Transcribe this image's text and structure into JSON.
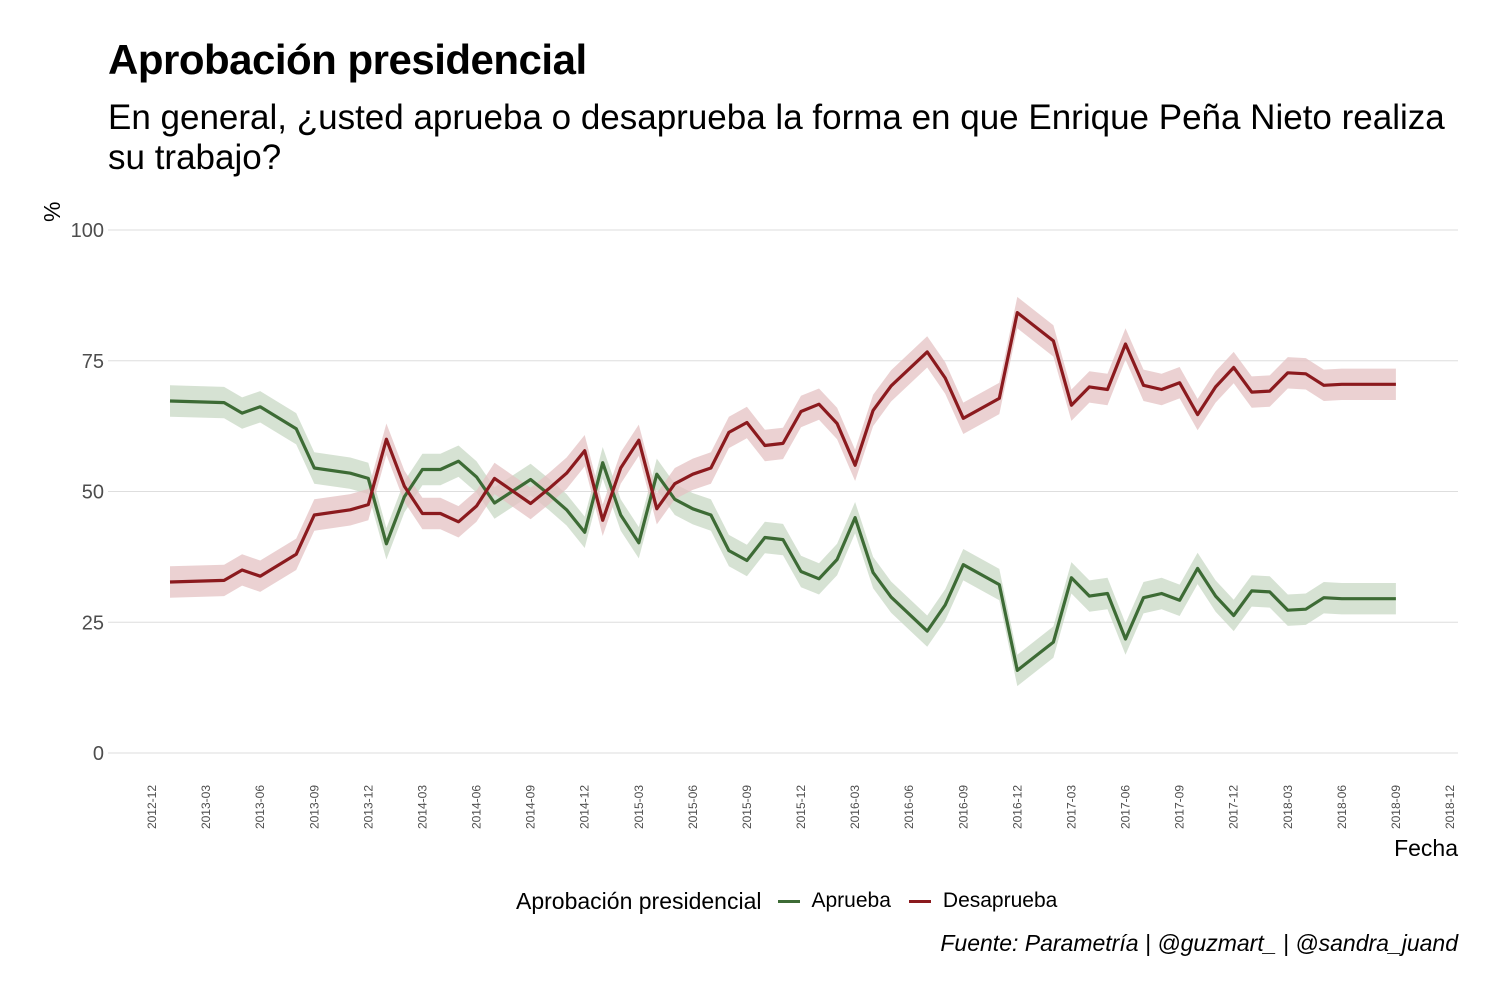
{
  "title": "Aprobación presidencial",
  "subtitle": "En general, ¿usted aprueba o desaprueba la forma en que Enrique Peña Nieto realiza su trabajo?",
  "caption": "Fuente: Parametría | @guzmart_ | @sandra_juand",
  "legend": {
    "title": "Aprobación presidencial",
    "items": [
      "Aprueba",
      "Desaprueba"
    ]
  },
  "colors": {
    "aprueba": "#3d6b35",
    "aprueba_band": "#c8d8c4",
    "desaprueba": "#8b1a1e",
    "desaprueba_band": "#e4c2c3",
    "grid": "#dedede"
  },
  "chart_data": {
    "type": "line",
    "xlabel": "Fecha",
    "ylabel": "%",
    "ylim": [
      0,
      100
    ],
    "yticks": [
      0,
      25,
      50,
      75,
      100
    ],
    "xlim": [
      "2012-12",
      "2018-12"
    ],
    "xticks": [
      "2012-12",
      "2013-03",
      "2013-06",
      "2013-09",
      "2013-12",
      "2014-03",
      "2014-06",
      "2014-09",
      "2014-12",
      "2015-03",
      "2015-06",
      "2015-09",
      "2015-12",
      "2016-03",
      "2016-06",
      "2016-09",
      "2016-12",
      "2017-03",
      "2017-06",
      "2017-09",
      "2017-12",
      "2018-03",
      "2018-06",
      "2018-09",
      "2018-12"
    ],
    "grid": true,
    "legend_position": "bottom",
    "band_halfwidth": 3,
    "x": [
      "2013-01",
      "2013-04",
      "2013-05",
      "2013-06",
      "2013-08",
      "2013-09",
      "2013-11",
      "2013-12",
      "2014-01",
      "2014-02",
      "2014-03",
      "2014-04",
      "2014-05",
      "2014-06",
      "2014-07",
      "2014-09",
      "2014-10",
      "2014-11",
      "2014-12",
      "2015-01",
      "2015-02",
      "2015-03",
      "2015-04",
      "2015-05",
      "2015-06",
      "2015-07",
      "2015-08",
      "2015-09",
      "2015-10",
      "2015-11",
      "2015-12",
      "2016-01",
      "2016-02",
      "2016-03",
      "2016-04",
      "2016-05",
      "2016-07",
      "2016-08",
      "2016-09",
      "2016-11",
      "2016-12",
      "2017-02",
      "2017-03",
      "2017-04",
      "2017-05",
      "2017-06",
      "2017-07",
      "2017-08",
      "2017-09",
      "2017-10",
      "2017-11",
      "2017-12",
      "2018-01",
      "2018-02",
      "2018-03",
      "2018-04",
      "2018-05",
      "2018-06",
      "2018-07",
      "2018-08",
      "2018-09"
    ],
    "series": [
      {
        "name": "Aprueba",
        "values": [
          67.3,
          67.0,
          65.0,
          66.2,
          62.0,
          54.5,
          53.5,
          52.5,
          40.0,
          49.0,
          54.2,
          54.2,
          55.8,
          52.8,
          47.8,
          52.3,
          49.5,
          46.5,
          42.2,
          55.5,
          45.5,
          40.2,
          53.3,
          48.5,
          46.7,
          45.5,
          38.7,
          36.8,
          41.2,
          40.8,
          34.7,
          33.3,
          37.0,
          45.0,
          34.5,
          29.8,
          23.3,
          28.3,
          36.0,
          32.2,
          15.8,
          21.2,
          33.5,
          30.0,
          30.5,
          21.8,
          29.7,
          30.5,
          29.2,
          35.3,
          30.0,
          26.3,
          31.0,
          30.8,
          27.3,
          27.5,
          29.7,
          29.5,
          29.5,
          29.5,
          29.5
        ]
      },
      {
        "name": "Desaprueba",
        "values": [
          32.7,
          33.0,
          35.0,
          33.8,
          38.0,
          45.5,
          46.5,
          47.5,
          60.0,
          51.0,
          45.8,
          45.8,
          44.2,
          47.2,
          52.5,
          47.7,
          50.5,
          53.5,
          57.8,
          44.5,
          54.5,
          59.8,
          46.7,
          51.5,
          53.3,
          54.5,
          61.3,
          63.2,
          58.8,
          59.2,
          65.3,
          66.7,
          63.0,
          55.0,
          65.5,
          70.2,
          76.7,
          71.7,
          64.0,
          67.8,
          84.2,
          78.8,
          66.5,
          70.0,
          69.5,
          78.2,
          70.3,
          69.5,
          70.8,
          64.7,
          70.0,
          73.7,
          69.0,
          69.2,
          72.7,
          72.5,
          70.3,
          70.5,
          70.5,
          70.5,
          70.5
        ]
      }
    ]
  }
}
